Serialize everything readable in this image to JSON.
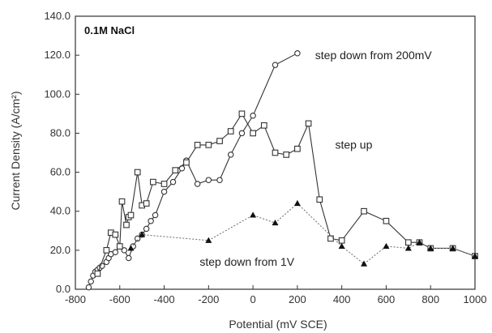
{
  "chart_data": {
    "type": "scatter",
    "title": "",
    "panel_label": "0.1M NaCl",
    "xlabel": "Potential (mV SCE)",
    "ylabel": "Current Density (A/cm²)",
    "xlim": [
      -800,
      1000
    ],
    "ylim": [
      0,
      140
    ],
    "x_ticks": [
      -800,
      -600,
      -400,
      -200,
      0,
      200,
      400,
      600,
      800,
      1000
    ],
    "y_ticks": [
      0,
      20,
      40,
      60,
      80,
      100,
      120,
      140
    ],
    "x_tick_labels": [
      "-800",
      "-600",
      "-400",
      "-200",
      "0",
      "200",
      "400",
      "600",
      "800",
      "1000"
    ],
    "y_tick_labels": [
      "0.0",
      "20.0",
      "40.0",
      "60.0",
      "80.0",
      "100.0",
      "120.0",
      "140.0"
    ],
    "grid": false,
    "series": [
      {
        "name": "step down from 200mV",
        "marker": "circle-open",
        "color": "#333333",
        "points": [
          [
            -740,
            1
          ],
          [
            -730,
            4
          ],
          [
            -720,
            7
          ],
          [
            -710,
            9
          ],
          [
            -700,
            10
          ],
          [
            -690,
            11
          ],
          [
            -680,
            12
          ],
          [
            -660,
            14
          ],
          [
            -650,
            16
          ],
          [
            -640,
            18
          ],
          [
            -620,
            19
          ],
          [
            -600,
            22
          ],
          [
            -580,
            20
          ],
          [
            -560,
            16
          ],
          [
            -540,
            22
          ],
          [
            -520,
            26
          ],
          [
            -500,
            28
          ],
          [
            -480,
            31
          ],
          [
            -460,
            35
          ],
          [
            -440,
            38
          ],
          [
            -400,
            50
          ],
          [
            -360,
            55
          ],
          [
            -320,
            62
          ],
          [
            -300,
            66
          ],
          [
            -250,
            54
          ],
          [
            -200,
            56
          ],
          [
            -150,
            56
          ],
          [
            -100,
            69
          ],
          [
            -50,
            80
          ],
          [
            0,
            89
          ],
          [
            100,
            115
          ],
          [
            200,
            121
          ]
        ]
      },
      {
        "name": "step up",
        "marker": "square-open",
        "color": "#333333",
        "points": [
          [
            -700,
            8
          ],
          [
            -660,
            20
          ],
          [
            -640,
            29
          ],
          [
            -620,
            28
          ],
          [
            -600,
            22
          ],
          [
            -590,
            45
          ],
          [
            -570,
            33
          ],
          [
            -560,
            37
          ],
          [
            -550,
            38
          ],
          [
            -520,
            60
          ],
          [
            -500,
            43
          ],
          [
            -480,
            44
          ],
          [
            -450,
            55
          ],
          [
            -400,
            54
          ],
          [
            -350,
            61
          ],
          [
            -300,
            65
          ],
          [
            -250,
            74
          ],
          [
            -200,
            74
          ],
          [
            -150,
            76
          ],
          [
            -100,
            81
          ],
          [
            -50,
            90
          ],
          [
            0,
            80
          ],
          [
            50,
            84
          ],
          [
            100,
            70
          ],
          [
            150,
            69
          ],
          [
            200,
            72
          ],
          [
            250,
            85
          ],
          [
            300,
            46
          ],
          [
            350,
            26
          ],
          [
            400,
            25
          ],
          [
            500,
            40
          ],
          [
            600,
            35
          ],
          [
            700,
            24
          ],
          [
            750,
            24
          ],
          [
            800,
            21
          ],
          [
            900,
            21
          ],
          [
            1000,
            17
          ]
        ]
      },
      {
        "name": "step down from 1V",
        "marker": "triangle-filled",
        "color": "#333333",
        "points": [
          [
            -550,
            21
          ],
          [
            -500,
            28
          ],
          [
            -200,
            25
          ],
          [
            0,
            38
          ],
          [
            100,
            34
          ],
          [
            200,
            44
          ],
          [
            400,
            22
          ],
          [
            500,
            13
          ],
          [
            600,
            22
          ],
          [
            700,
            21
          ],
          [
            750,
            24
          ],
          [
            800,
            21
          ],
          [
            900,
            21
          ],
          [
            1000,
            17
          ]
        ]
      }
    ],
    "annotations": [
      {
        "text": "step down from 200mV",
        "x": 280,
        "y": 118
      },
      {
        "text": "step up",
        "x": 370,
        "y": 72
      },
      {
        "text": "step down from 1V",
        "x": -240,
        "y": 12
      }
    ]
  }
}
